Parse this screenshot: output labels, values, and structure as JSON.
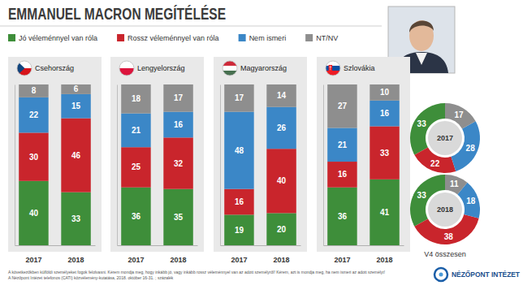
{
  "title": "EMMANUEL MACRON MEGÍTÉLÉSE",
  "caption": "V4 összesen",
  "notes": [
    "A következőkben külföldi személyeket fogok felolvasni. Kérem mondja meg, hogy inkább jó, vagy inkább rossz véleménnyel van az adott személyről! Kérem, azt is mondja meg, ha nem ismeri az adott személyt!",
    "A Nézőpont Intézet telefonos (CATI) közvélemény-kutatása, 2018. október 16-31. ; százalék"
  ],
  "source": "NÉZŐPONT INTÉZET",
  "chart_data": [
    {
      "type": "bar",
      "stacked": true,
      "title": "Csehország",
      "categories": [
        "2017",
        "2018"
      ],
      "series": [
        {
          "name": "Jó véleménnyel van róla",
          "color": "#3e8e3a",
          "values": [
            40,
            33
          ]
        },
        {
          "name": "Rossz véleménnyel van róla",
          "color": "#c9252c",
          "values": [
            30,
            46
          ]
        },
        {
          "name": "Nem ismeri",
          "color": "#3b87c7",
          "values": [
            22,
            15
          ]
        },
        {
          "name": "NT/NV",
          "color": "#8e8e8e",
          "values": [
            8,
            6
          ]
        }
      ],
      "ylim": [
        0,
        100
      ],
      "data_labels": true,
      "tick_labels": "x"
    },
    {
      "type": "bar",
      "stacked": true,
      "title": "Lengyelország",
      "categories": [
        "2017",
        "2018"
      ],
      "series": [
        {
          "color": "#3e8e3a",
          "values": [
            36,
            35
          ]
        },
        {
          "color": "#c9252c",
          "values": [
            25,
            32
          ]
        },
        {
          "color": "#3b87c7",
          "values": [
            21,
            16
          ]
        },
        {
          "color": "#8e8e8e",
          "values": [
            18,
            17
          ]
        }
      ],
      "ylim": [
        0,
        100
      ],
      "data_labels": true,
      "tick_labels": "x"
    },
    {
      "type": "bar",
      "stacked": true,
      "title": "Magyarország",
      "categories": [
        "2017",
        "2018"
      ],
      "series": [
        {
          "color": "#3e8e3a",
          "values": [
            19,
            20
          ]
        },
        {
          "color": "#c9252c",
          "values": [
            16,
            40
          ]
        },
        {
          "color": "#3b87c7",
          "values": [
            48,
            26
          ]
        },
        {
          "color": "#8e8e8e",
          "values": [
            17,
            14
          ]
        }
      ],
      "ylim": [
        0,
        100
      ],
      "data_labels": true,
      "tick_labels": "x"
    },
    {
      "type": "bar",
      "stacked": true,
      "title": "Szlovákia",
      "categories": [
        "2017",
        "2018"
      ],
      "series": [
        {
          "color": "#3e8e3a",
          "values": [
            36,
            41
          ]
        },
        {
          "color": "#c9252c",
          "values": [
            16,
            33
          ]
        },
        {
          "color": "#3b87c7",
          "values": [
            21,
            16
          ]
        },
        {
          "color": "#8e8e8e",
          "values": [
            27,
            10
          ]
        }
      ],
      "ylim": [
        0,
        100
      ],
      "data_labels": true,
      "tick_labels": "x"
    },
    {
      "type": "pie",
      "title": "2017",
      "values": [
        33,
        22,
        28,
        17
      ],
      "colors": [
        "#3e8e3a",
        "#c9252c",
        "#3b87c7",
        "#8e8e8e"
      ],
      "data_labels": true
    },
    {
      "type": "pie",
      "title": "2018",
      "values": [
        33,
        38,
        18,
        11
      ],
      "colors": [
        "#3e8e3a",
        "#c9252c",
        "#3b87c7",
        "#8e8e8e"
      ],
      "data_labels": true
    }
  ]
}
